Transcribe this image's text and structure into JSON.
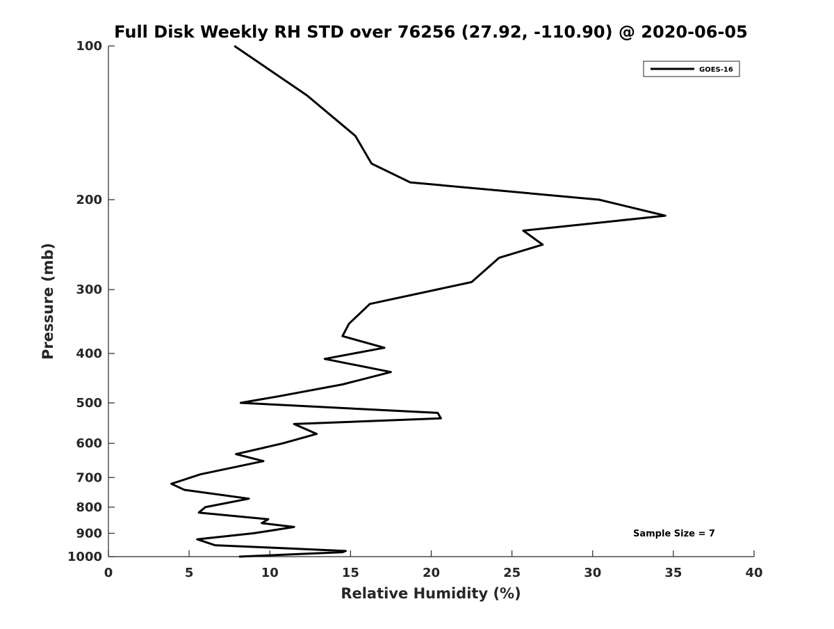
{
  "chart_data": {
    "type": "line",
    "title": "Full Disk Weekly RH STD over 76256 (27.92, -110.90) @ 2020-06-05",
    "xlabel": "Relative Humidity (%)",
    "ylabel": "Pressure (mb)",
    "xlim": [
      0,
      40
    ],
    "ylim": [
      1000,
      100
    ],
    "y_scale": "log",
    "y_reversed": true,
    "x_ticks": [
      0,
      5,
      10,
      15,
      20,
      25,
      30,
      35,
      40
    ],
    "x_tick_labels": [
      "0",
      "5",
      "10",
      "15",
      "20",
      "25",
      "30",
      "35",
      "40"
    ],
    "y_ticks": [
      100,
      200,
      300,
      400,
      500,
      600,
      700,
      800,
      900,
      1000
    ],
    "y_tick_labels": [
      "100",
      "200",
      "300",
      "400",
      "500",
      "600",
      "700",
      "800",
      "900",
      "1000"
    ],
    "grid": false,
    "legend_position": "top-right",
    "annotation": "Sample Size = 7",
    "series": [
      {
        "name": "GOES-16",
        "color": "#000000",
        "x": [
          7.8,
          12.3,
          15.3,
          16.3,
          18.7,
          30.4,
          34.5,
          25.7,
          26.9,
          24.2,
          22.5,
          16.2,
          14.9,
          14.5,
          17.1,
          13.4,
          17.5,
          14.5,
          10.6,
          8.2,
          20.4,
          20.6,
          11.5,
          12.9,
          10.8,
          7.9,
          9.6,
          5.7,
          3.9,
          4.7,
          8.7,
          6.0,
          5.6,
          9.9,
          9.5,
          11.5,
          9.0,
          5.5,
          6.6,
          11.6,
          14.7,
          14.5,
          8.1
        ],
        "y": [
          100,
          125,
          150,
          170,
          185,
          200,
          215,
          230,
          245,
          260,
          290,
          320,
          350,
          370,
          390,
          410,
          435,
          460,
          485,
          500,
          523,
          536,
          550,
          575,
          600,
          630,
          650,
          690,
          720,
          740,
          770,
          800,
          820,
          845,
          860,
          875,
          900,
          925,
          950,
          965,
          975,
          980,
          1000
        ]
      }
    ]
  }
}
